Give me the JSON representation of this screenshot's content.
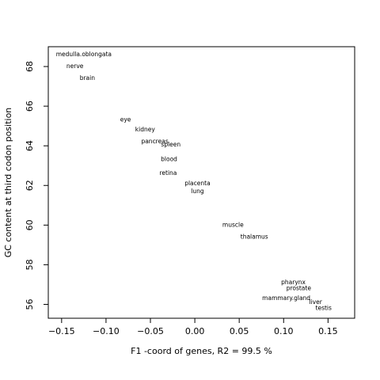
{
  "chart_data": {
    "type": "scatter",
    "title": "",
    "xlabel": "F1 -coord of genes, R2 = 99.5 %",
    "ylabel": "GC content at third codon position",
    "xlim": [
      -0.165,
      0.18
    ],
    "ylim": [
      55.3,
      69.0
    ],
    "x_ticks": [
      {
        "value": -0.15,
        "label": "−0.15"
      },
      {
        "value": -0.1,
        "label": "−0.10"
      },
      {
        "value": -0.05,
        "label": "−0.05"
      },
      {
        "value": 0.0,
        "label": "0.00"
      },
      {
        "value": 0.05,
        "label": "0.05"
      },
      {
        "value": 0.1,
        "label": "0.10"
      },
      {
        "value": 0.15,
        "label": "0.15"
      }
    ],
    "y_ticks": [
      {
        "value": 56,
        "label": "56"
      },
      {
        "value": 58,
        "label": "58"
      },
      {
        "value": 60,
        "label": "60"
      },
      {
        "value": 62,
        "label": "62"
      },
      {
        "value": 64,
        "label": "64"
      },
      {
        "value": 66,
        "label": "66"
      },
      {
        "value": 68,
        "label": "68"
      }
    ],
    "grid": false,
    "points": [
      {
        "label": "medulla.oblongata",
        "x": -0.125,
        "y": 68.6
      },
      {
        "label": "nerve",
        "x": -0.135,
        "y": 68.0
      },
      {
        "label": "brain",
        "x": -0.121,
        "y": 67.4
      },
      {
        "label": "eye",
        "x": -0.078,
        "y": 65.3
      },
      {
        "label": "kidney",
        "x": -0.056,
        "y": 64.8
      },
      {
        "label": "pancreas",
        "x": -0.045,
        "y": 64.2
      },
      {
        "label": "spleen",
        "x": -0.027,
        "y": 64.05
      },
      {
        "label": "blood",
        "x": -0.029,
        "y": 63.3
      },
      {
        "label": "retina",
        "x": -0.03,
        "y": 62.6
      },
      {
        "label": "placenta",
        "x": 0.003,
        "y": 62.1
      },
      {
        "label": "lung",
        "x": 0.003,
        "y": 61.7
      },
      {
        "label": "muscle",
        "x": 0.043,
        "y": 60.0
      },
      {
        "label": "thalamus",
        "x": 0.067,
        "y": 59.4
      },
      {
        "label": "pharynx",
        "x": 0.111,
        "y": 57.1
      },
      {
        "label": "prostate",
        "x": 0.117,
        "y": 56.8
      },
      {
        "label": "mammary.gland",
        "x": 0.103,
        "y": 56.3
      },
      {
        "label": "liver",
        "x": 0.136,
        "y": 56.1
      },
      {
        "label": "testis",
        "x": 0.145,
        "y": 55.8
      }
    ]
  }
}
